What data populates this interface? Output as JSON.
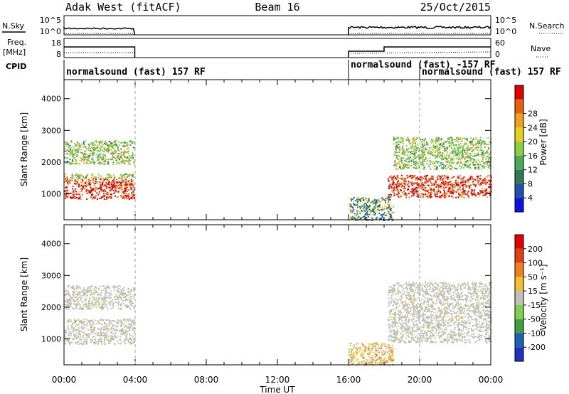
{
  "header": {
    "station": "Adak West (fitACF)",
    "beam": "Beam 16",
    "date": "25/Oct/2015"
  },
  "strips": {
    "nsky_label": "N.Sky",
    "nsky_ticks": [
      "10^5",
      "10^0"
    ],
    "nsearch_label": "N.Search",
    "freq_label_1": "Freq.",
    "freq_label_2": "[MHz]",
    "freq_ticks": [
      "18",
      "8"
    ],
    "nave_ticks": [
      "60",
      "0"
    ],
    "nave_label": "Nave",
    "cpid_label": "CPID",
    "cpid_items": [
      {
        "text": "normalsound (fast) 157 RF",
        "start_hour": 0
      },
      {
        "text": "normalsound (fast) -157 RF",
        "start_hour": 16
      },
      {
        "text": "normalsound (fast) 157 RF",
        "start_hour": 20
      }
    ]
  },
  "axes": {
    "xlabel": "Time UT",
    "xtick_labels": [
      "00:00",
      "04:00",
      "08:00",
      "12:00",
      "16:00",
      "20:00",
      "00:00"
    ],
    "ylabel": "Slant Range [km]",
    "ytick_labels": [
      "1000",
      "2000",
      "3000",
      "4000"
    ]
  },
  "colorbars": {
    "power": {
      "label": "Power [dB]",
      "tick_labels": [
        "4",
        "8",
        "12",
        "16",
        "20",
        "24",
        "28"
      ],
      "colors": [
        "#1010e0",
        "#2050b0",
        "#2e7a55",
        "#4ea85a",
        "#8ad040",
        "#e8d020",
        "#f0a020",
        "#e86010",
        "#e00000"
      ]
    },
    "velocity": {
      "label": "Velocity [m s⁻¹]",
      "tick_labels": [
        "200",
        "100",
        "50",
        "15",
        "-15",
        "-50",
        "-100",
        "-200"
      ],
      "colors": [
        "#2030c0",
        "#2060b0",
        "#40a040",
        "#80d050",
        "#c0c0b8",
        "#f0c030",
        "#f08020",
        "#e04010",
        "#e00000"
      ]
    }
  },
  "chart_data": [
    {
      "type": "heatmap",
      "title": "Power",
      "x_range_hours": [
        0,
        24
      ],
      "y_range_km": [
        180,
        4600
      ],
      "data_gaps_hours": [
        [
          4,
          16
        ]
      ],
      "scatter_regions": [
        {
          "t0": 0.0,
          "t1": 3.95,
          "r0": 850,
          "r1": 1500,
          "value": "strong"
        },
        {
          "t0": 0.0,
          "t1": 3.95,
          "r0": 1500,
          "r1": 1650,
          "value": "moderate"
        },
        {
          "t0": 0.0,
          "t1": 3.95,
          "r0": 1950,
          "r1": 2700,
          "value": "moderate"
        },
        {
          "t0": 16.0,
          "t1": 18.5,
          "r0": 180,
          "r1": 900,
          "value": "weak"
        },
        {
          "t0": 18.2,
          "t1": 24.0,
          "r0": 900,
          "r1": 1600,
          "value": "strong"
        },
        {
          "t0": 18.5,
          "t1": 24.0,
          "r0": 1800,
          "r1": 2800,
          "value": "moderate"
        }
      ]
    },
    {
      "type": "heatmap",
      "title": "Velocity",
      "x_range_hours": [
        0,
        24
      ],
      "y_range_km": [
        180,
        4600
      ],
      "data_gaps_hours": [
        [
          4,
          16
        ]
      ],
      "scatter_regions": [
        {
          "t0": 0.0,
          "t1": 3.95,
          "r0": 850,
          "r1": 1650,
          "value": "ground"
        },
        {
          "t0": 0.0,
          "t1": 3.95,
          "r0": 1950,
          "r1": 2700,
          "value": "ground"
        },
        {
          "t0": 16.0,
          "t1": 18.5,
          "r0": 180,
          "r1": 900,
          "value": "mixed"
        },
        {
          "t0": 18.2,
          "t1": 24.0,
          "r0": 900,
          "r1": 2800,
          "value": "ground"
        }
      ]
    }
  ]
}
